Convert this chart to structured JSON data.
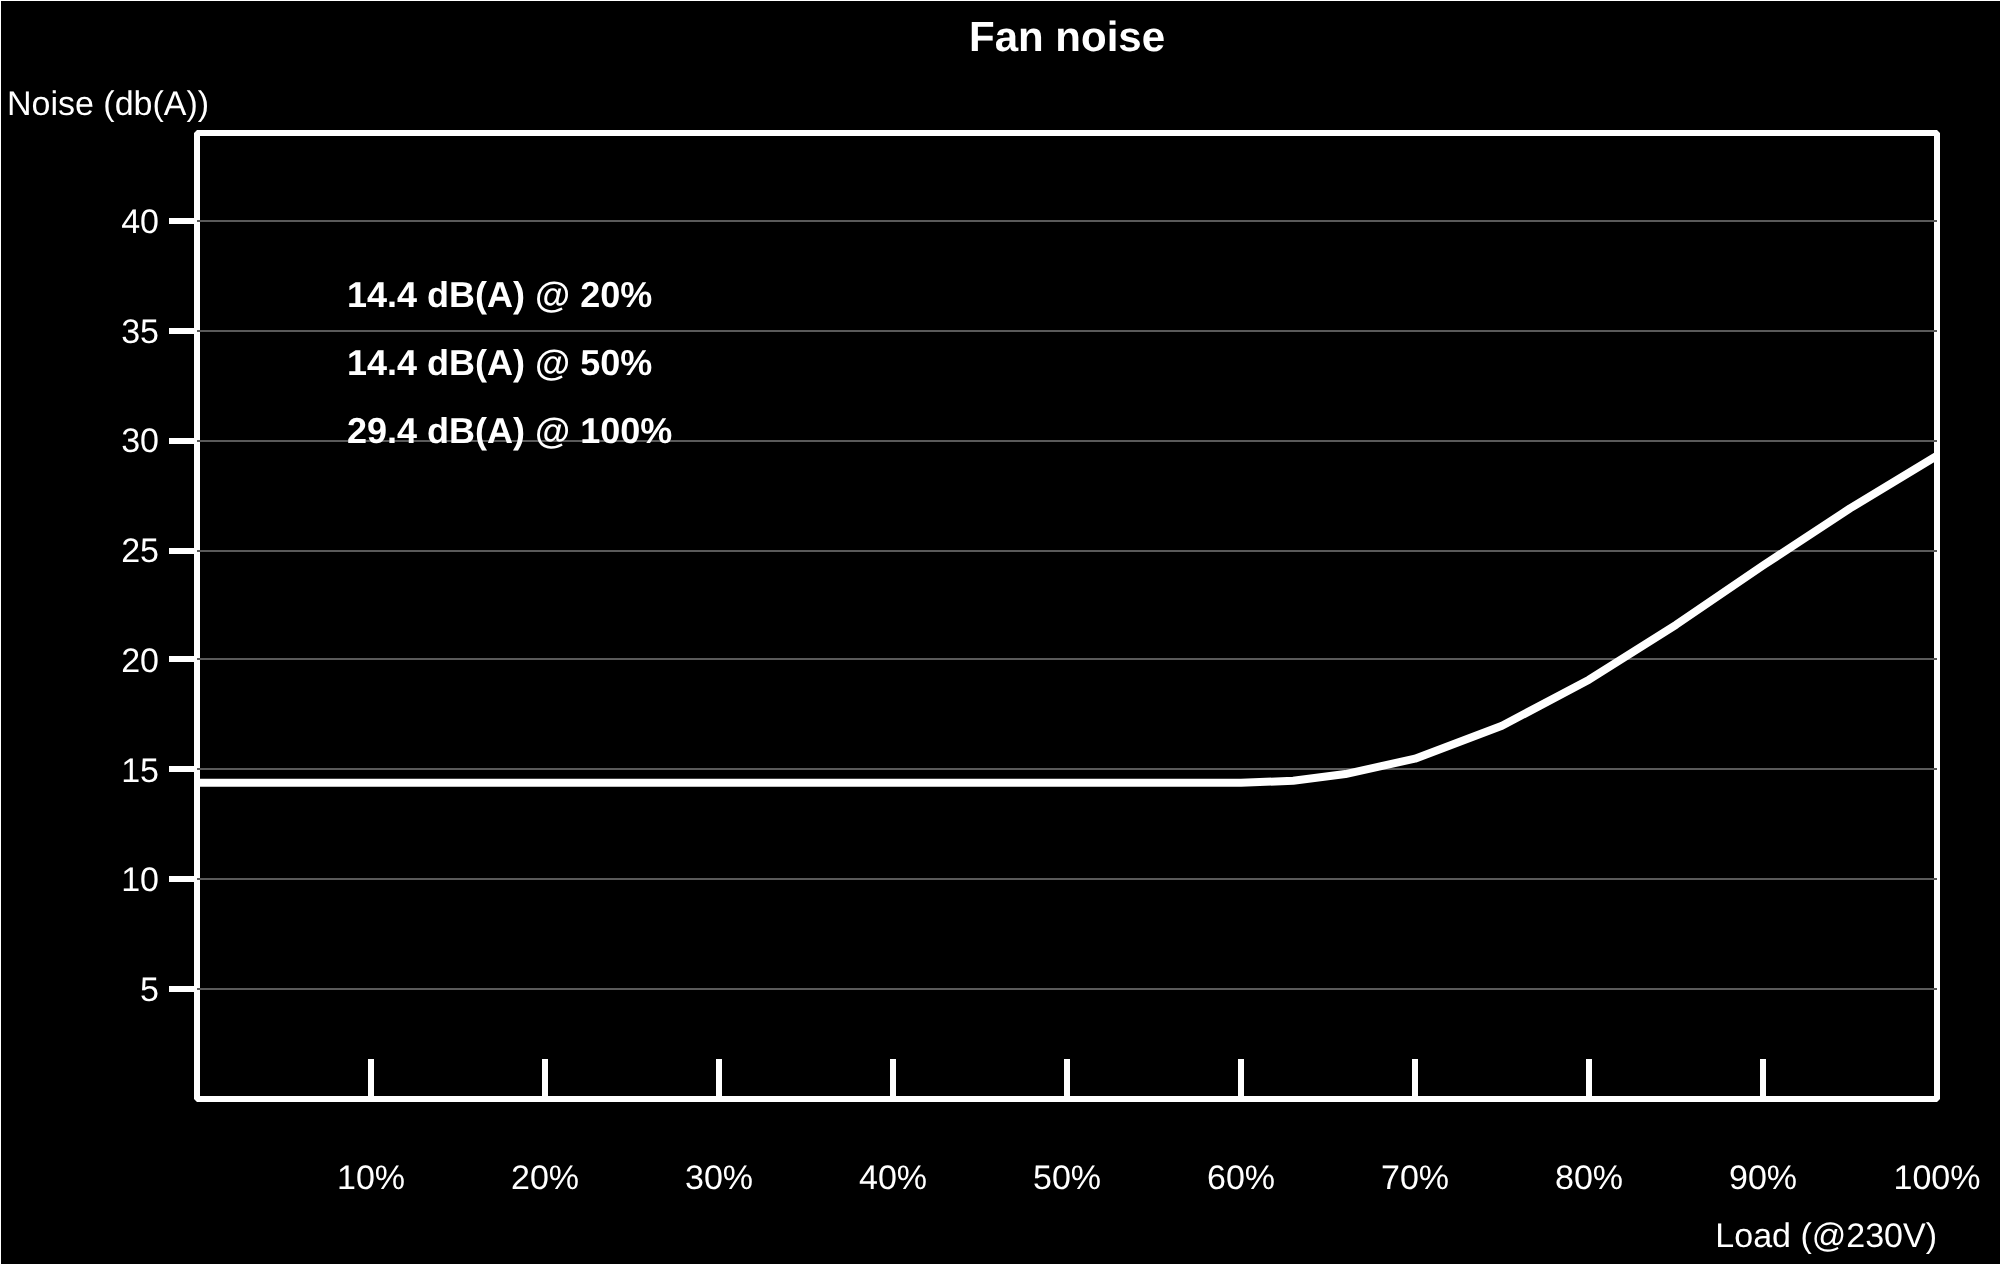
{
  "chart_data": {
    "type": "line",
    "title": "Fan noise",
    "xlabel": "Load (@230V)",
    "ylabel": "Noise (db(A))",
    "x": [
      0,
      10,
      20,
      30,
      40,
      50,
      55,
      60,
      63,
      66,
      70,
      75,
      80,
      85,
      90,
      95,
      100
    ],
    "series": [
      {
        "color": "#ffffff",
        "values": [
          14.4,
          14.4,
          14.4,
          14.4,
          14.4,
          14.4,
          14.4,
          14.4,
          14.5,
          14.8,
          15.5,
          17.0,
          19.1,
          21.6,
          24.3,
          26.9,
          29.3
        ]
      }
    ],
    "xlim": [
      0,
      100
    ],
    "ylim": [
      0,
      44
    ],
    "xticks": [
      {
        "value": 10,
        "label": "10%"
      },
      {
        "value": 20,
        "label": "20%"
      },
      {
        "value": 30,
        "label": "30%"
      },
      {
        "value": 40,
        "label": "40%"
      },
      {
        "value": 50,
        "label": "50%"
      },
      {
        "value": 60,
        "label": "60%"
      },
      {
        "value": 70,
        "label": "70%"
      },
      {
        "value": 80,
        "label": "80%"
      },
      {
        "value": 90,
        "label": "90%"
      },
      {
        "value": 100,
        "label": "100%"
      }
    ],
    "yticks": [
      5,
      10,
      15,
      20,
      25,
      30,
      35,
      40
    ],
    "annotations": [
      "14.4    dB(A) @ 20%",
      "14.4    dB(A) @ 50%",
      "29.4    dB(A) @ 100%"
    ],
    "grid": "y",
    "marker": "none",
    "line_style": "solid"
  }
}
